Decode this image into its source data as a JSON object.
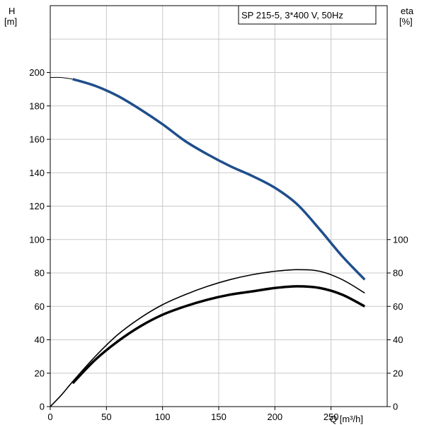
{
  "chart_data": {
    "type": "line",
    "title": "SP 215-5, 3*400 V, 50Hz",
    "x_axis": {
      "label": "Q [m³/h]",
      "ticks": [
        0,
        50,
        100,
        150,
        200,
        250
      ],
      "range": [
        0,
        300
      ]
    },
    "y_left": {
      "label_top": "H",
      "label_unit": "[m]",
      "ticks": [
        0,
        20,
        40,
        60,
        80,
        100,
        120,
        140,
        160,
        180,
        200
      ],
      "range": [
        0,
        240
      ]
    },
    "y_right": {
      "label_top": "eta",
      "label_unit": "[%]",
      "ticks": [
        0,
        20,
        40,
        60,
        80,
        100
      ],
      "range": [
        0,
        240
      ]
    },
    "grid": true,
    "colors": {
      "head": "#1f4e8c",
      "efficiency": "#000000"
    },
    "series": [
      {
        "role": "head-extension",
        "points": [
          [
            0,
            197
          ],
          [
            10,
            197
          ],
          [
            20,
            196
          ]
        ]
      },
      {
        "role": "head",
        "points": [
          [
            20,
            196
          ],
          [
            40,
            192
          ],
          [
            60,
            186
          ],
          [
            80,
            178
          ],
          [
            100,
            169
          ],
          [
            120,
            159
          ],
          [
            140,
            151
          ],
          [
            160,
            144
          ],
          [
            180,
            138
          ],
          [
            200,
            131
          ],
          [
            220,
            121
          ],
          [
            240,
            106
          ],
          [
            260,
            90
          ],
          [
            280,
            76
          ]
        ]
      },
      {
        "role": "efficiency-thin",
        "points": [
          [
            0,
            0
          ],
          [
            10,
            7
          ],
          [
            20,
            15
          ],
          [
            40,
            30
          ],
          [
            60,
            43
          ],
          [
            80,
            53
          ],
          [
            100,
            61
          ],
          [
            120,
            67
          ],
          [
            140,
            72
          ],
          [
            160,
            76
          ],
          [
            180,
            79
          ],
          [
            200,
            81
          ],
          [
            220,
            82
          ],
          [
            240,
            81
          ],
          [
            260,
            76
          ],
          [
            280,
            68
          ]
        ]
      },
      {
        "role": "efficiency-thick",
        "points": [
          [
            20,
            14
          ],
          [
            40,
            28
          ],
          [
            60,
            39
          ],
          [
            80,
            48
          ],
          [
            100,
            55
          ],
          [
            120,
            60
          ],
          [
            140,
            64
          ],
          [
            160,
            67
          ],
          [
            180,
            69
          ],
          [
            200,
            71
          ],
          [
            220,
            72
          ],
          [
            240,
            71
          ],
          [
            260,
            67
          ],
          [
            280,
            60
          ]
        ]
      }
    ]
  }
}
